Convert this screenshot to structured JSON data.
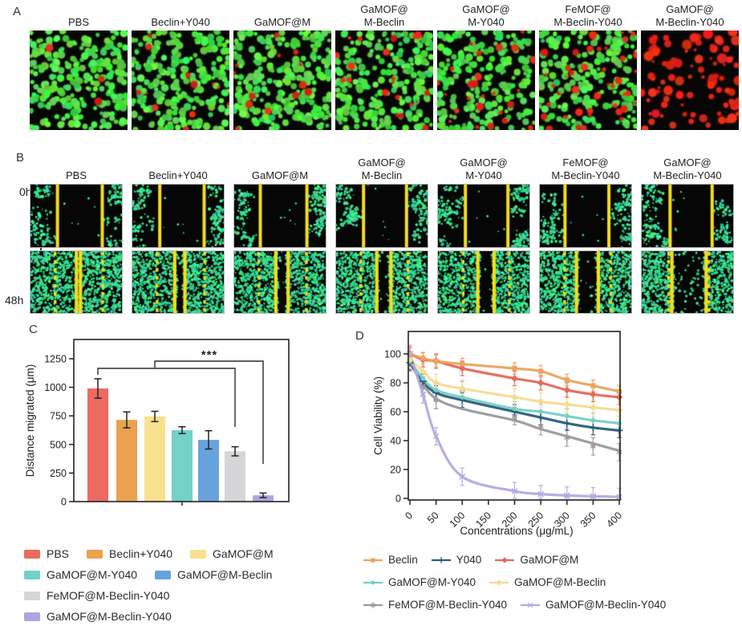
{
  "panel_a": {
    "label": "A",
    "columns": [
      {
        "label_lines": [
          "PBS"
        ],
        "green_cells": 260,
        "red_cells": 3
      },
      {
        "label_lines": [
          "Beclin+Y040"
        ],
        "green_cells": 245,
        "red_cells": 12
      },
      {
        "label_lines": [
          "GaMOF@M"
        ],
        "green_cells": 245,
        "red_cells": 14
      },
      {
        "label_lines": [
          "GaMOF@",
          "M-Beclin"
        ],
        "green_cells": 235,
        "red_cells": 20
      },
      {
        "label_lines": [
          "GaMOF@",
          "M-Y040"
        ],
        "green_cells": 235,
        "red_cells": 26
      },
      {
        "label_lines": [
          "FeMOF@",
          "M-Beclin-Y040"
        ],
        "green_cells": 215,
        "red_cells": 42
      },
      {
        "label_lines": [
          "GaMOF@",
          "M-Beclin-Y040"
        ],
        "green_cells": 0,
        "red_cells": 95
      }
    ]
  },
  "panel_b": {
    "label": "B",
    "time_start": "0h",
    "time_end": "48h",
    "columns": [
      {
        "label_lines": [
          "PBS"
        ],
        "lines_0h": [
          0.295,
          0.785
        ],
        "dashed_48h": [
          0.27,
          0.79
        ],
        "solid_48h": [
          0.503,
          0.547
        ],
        "gap_fill": 0.5
      },
      {
        "label_lines": [
          "Beclin+Y040"
        ],
        "lines_0h": [
          0.3,
          0.785
        ],
        "dashed_48h": [
          0.27,
          0.79
        ],
        "solid_48h": [
          0.463,
          0.575
        ],
        "gap_fill": 0.06
      },
      {
        "label_lines": [
          "GaMOF@M"
        ],
        "lines_0h": [
          0.285,
          0.795
        ],
        "dashed_48h": [
          0.27,
          0.79
        ],
        "solid_48h": [
          0.455,
          0.59
        ],
        "gap_fill": 0.06
      },
      {
        "label_lines": [
          "GaMOF@",
          "M-Beclin"
        ],
        "lines_0h": [
          0.3,
          0.77
        ],
        "dashed_48h": [
          0.27,
          0.785
        ],
        "solid_48h": [
          0.445,
          0.6
        ],
        "gap_fill": 0.06
      },
      {
        "label_lines": [
          "GaMOF@",
          "M-Y040"
        ],
        "lines_0h": [
          0.3,
          0.765
        ],
        "dashed_48h": [
          0.275,
          0.78
        ],
        "solid_48h": [
          0.435,
          0.615
        ],
        "gap_fill": 0.06
      },
      {
        "label_lines": [
          "FeMOF@",
          "M-Beclin-Y040"
        ],
        "lines_0h": [
          0.275,
          0.755
        ],
        "dashed_48h": [
          0.27,
          0.775
        ],
        "solid_48h": [
          0.4,
          0.64
        ],
        "gap_fill": 0.06
      },
      {
        "label_lines": [
          "GaMOF@",
          "M-Beclin-Y040"
        ],
        "lines_0h": [
          0.31,
          0.77
        ],
        "dashed_48h": [
          0.295,
          0.735
        ],
        "solid_48h": [
          0.33,
          0.705
        ],
        "gap_fill": 0.12
      }
    ]
  },
  "panel_c": {
    "label": "C"
  },
  "panel_d": {
    "label": "D"
  },
  "legend_c_rows": [
    [
      "PBS",
      "Beclin+Y040",
      "GaMOF@M"
    ],
    [
      "GaMOF@M-Y040",
      "GaMOF@M-Beclin"
    ],
    [
      "FeMOF@M-Beclin-Y040"
    ],
    [
      "GaMOF@M-Beclin-Y040"
    ]
  ],
  "chart_data": [
    {
      "id": "migration_bar",
      "type": "bar",
      "title": "",
      "xlabel": "",
      "ylabel": "Distance migrated (μm)",
      "ylim": [
        0,
        1420
      ],
      "yticks": [
        0,
        250,
        500,
        750,
        1000,
        1250
      ],
      "grid": false,
      "categories": [
        "PBS",
        "Beclin+Y040",
        "GaMOF@M",
        "GaMOF@M-Y040",
        "GaMOF@M-Beclin",
        "FeMOF@M-Beclin-Y040",
        "GaMOF@M-Beclin-Y040"
      ],
      "values": [
        990,
        715,
        745,
        625,
        540,
        440,
        55
      ],
      "errors": [
        85,
        70,
        45,
        30,
        80,
        40,
        20
      ],
      "bar_colors": [
        "#ed6a60",
        "#eaa24e",
        "#f9e08d",
        "#72d2c8",
        "#68a2dc",
        "#d6d5d8",
        "#aca6de"
      ],
      "significance": {
        "label": "***",
        "comparisons": [
          [
            0,
            5
          ],
          [
            2,
            6
          ]
        ]
      }
    },
    {
      "id": "viability_line",
      "type": "line",
      "title": "",
      "xlabel": "Concentrations (μg/mL)",
      "ylabel": "Cell Viability (%)",
      "x": [
        0,
        25,
        50,
        100,
        200,
        250,
        300,
        350,
        400
      ],
      "xticks": [
        0,
        50,
        100,
        150,
        200,
        250,
        300,
        350,
        400
      ],
      "yticks": [
        0,
        20,
        40,
        60,
        80,
        100
      ],
      "ylim": [
        0,
        108
      ],
      "xlim": [
        0,
        400
      ],
      "grid": false,
      "legend_position": "below",
      "series": [
        {
          "name": "FeMOF@M-Beclin-Y040",
          "color": "#9a999b",
          "marker": "asterisk",
          "err": 6,
          "values": [
            94,
            78,
            68,
            75,
            57,
            50,
            42,
            36,
            32
          ],
          "trend": [
            94,
            79,
            69,
            62,
            54,
            48,
            43,
            38,
            33
          ]
        },
        {
          "name": "Y040",
          "color": "#2a5d7d",
          "marker": "plus",
          "err": 5,
          "values": [
            94,
            81,
            73,
            68,
            60,
            56,
            52,
            49,
            47
          ]
        },
        {
          "name": "GaMOF@M-Y040",
          "color": "#76cfc5",
          "marker": "circle",
          "err": 5,
          "values": [
            95,
            83,
            75,
            70,
            62,
            60,
            57,
            54,
            52
          ]
        },
        {
          "name": "GaMOF@M-Beclin",
          "color": "#f6dc8f",
          "marker": "diamond",
          "err": 6,
          "values": [
            96,
            88,
            80,
            76,
            70,
            67,
            65,
            63,
            61
          ]
        },
        {
          "name": "GaMOF@M",
          "color": "#e5695c",
          "marker": "diamond",
          "err": 5,
          "values": [
            100,
            96,
            95,
            90,
            83,
            80,
            75,
            72,
            70
          ]
        },
        {
          "name": "Beclin",
          "color": "#eaa55e",
          "marker": "square",
          "err": 4,
          "values": [
            100,
            97,
            95,
            93,
            90,
            88,
            82,
            78,
            74
          ]
        },
        {
          "name": "GaMOF@M-Beclin-Y040",
          "color": "#b3abdf",
          "marker": "x",
          "err": 6,
          "values": [
            100,
            72,
            43,
            15,
            5,
            3,
            2,
            1.5,
            1
          ]
        }
      ],
      "legend_rows": [
        [
          "Beclin",
          "Y040",
          "GaMOF@M"
        ],
        [
          "GaMOF@M-Y040",
          "GaMOF@M-Beclin"
        ],
        [
          "FeMOF@M-Beclin-Y040",
          "GaMOF@M-Beclin-Y040"
        ]
      ]
    }
  ],
  "micrograph_colors": {
    "background": "#060606",
    "live_green": "#3ccc4a",
    "dead_red": "#dd2518",
    "scratch_cell_teal": "#2fd98f",
    "scratch_line_yellow": "#f6dd20"
  }
}
